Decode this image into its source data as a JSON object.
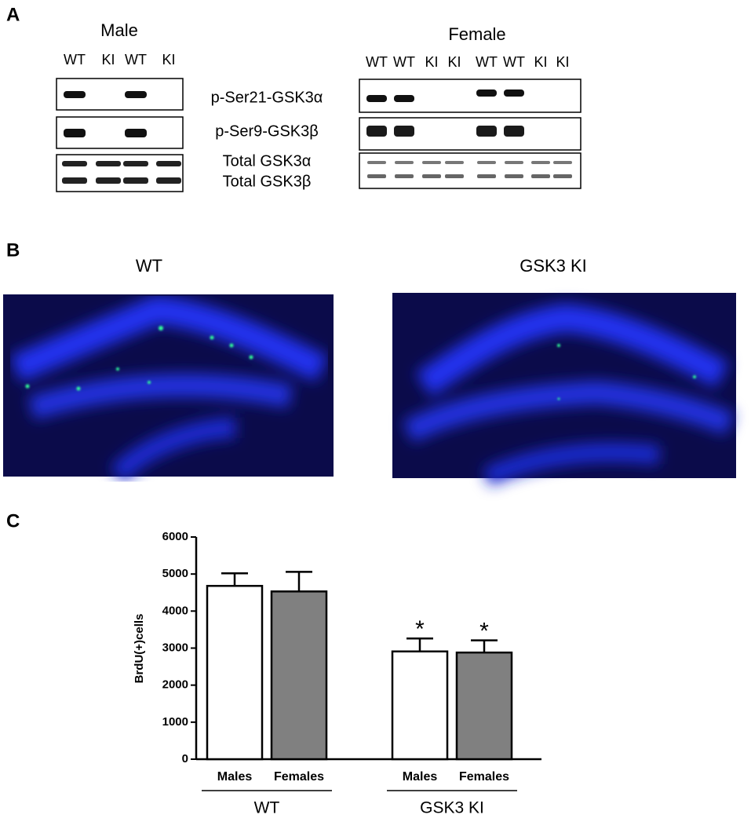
{
  "panels": {
    "a": {
      "letter": "A",
      "male_title": "Male",
      "male_lanes": [
        "WT",
        "KI",
        "WT",
        "KI"
      ],
      "female_title": "Female",
      "female_lanes": [
        "WT",
        "WT",
        "KI",
        "KI",
        "WT",
        "WT",
        "KI",
        "KI"
      ],
      "blot_labels": [
        "p-Ser21-GSK3α",
        "p-Ser9-GSK3β",
        "Total GSK3α",
        "Total GSK3β"
      ]
    },
    "b": {
      "letter": "B",
      "left_title": "WT",
      "right_title": "GSK3 KI"
    },
    "c": {
      "letter": "C"
    }
  },
  "chart_data": {
    "type": "bar",
    "ylabel": "BrdU(+)cells",
    "categories": [
      "Males",
      "Females",
      "Males",
      "Females"
    ],
    "values": [
      4680,
      4530,
      2910,
      2880
    ],
    "errors": [
      340,
      530,
      350,
      330
    ],
    "colors": [
      "#ffffff",
      "#808080",
      "#ffffff",
      "#808080"
    ],
    "significance": [
      null,
      null,
      "*",
      "*"
    ],
    "groups": [
      "WT",
      "GSK3 KI"
    ],
    "ylim": [
      0,
      6000
    ],
    "yticks": [
      0,
      1000,
      2000,
      3000,
      4000,
      5000,
      6000
    ]
  }
}
